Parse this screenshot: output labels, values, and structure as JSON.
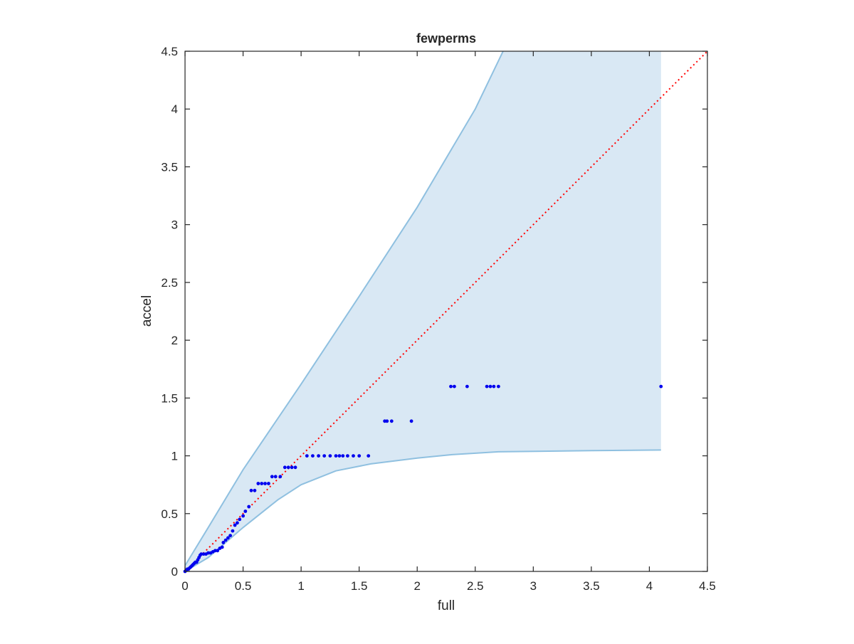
{
  "chart_data": {
    "type": "scatter",
    "title": "fewperms",
    "xlabel": "full",
    "ylabel": "accel",
    "xlim": [
      0,
      4.5
    ],
    "ylim": [
      0,
      4.5
    ],
    "xticks": [
      "0",
      "0.5",
      "1",
      "1.5",
      "2",
      "2.5",
      "3",
      "3.5",
      "4",
      "4.5"
    ],
    "yticks": [
      "0",
      "0.5",
      "1",
      "1.5",
      "2",
      "2.5",
      "3",
      "3.5",
      "4",
      "4.5"
    ],
    "grid": false,
    "colors": {
      "band_fill": "#d9e8f4",
      "band_edge": "#8fc0e0",
      "points": "#0000ee",
      "reference": "#ff0000",
      "axes": "#262626"
    },
    "band": {
      "upper": [
        [
          0,
          0.05
        ],
        [
          0.2,
          0.38
        ],
        [
          0.5,
          0.88
        ],
        [
          1.0,
          1.62
        ],
        [
          1.5,
          2.38
        ],
        [
          2.0,
          3.15
        ],
        [
          2.5,
          4.0
        ],
        [
          2.74,
          4.5
        ],
        [
          4.1,
          4.5
        ]
      ],
      "lower": [
        [
          0,
          0.0
        ],
        [
          0.2,
          0.12
        ],
        [
          0.5,
          0.38
        ],
        [
          0.8,
          0.62
        ],
        [
          1.0,
          0.75
        ],
        [
          1.3,
          0.87
        ],
        [
          1.6,
          0.93
        ],
        [
          2.0,
          0.98
        ],
        [
          2.3,
          1.01
        ],
        [
          2.7,
          1.035
        ],
        [
          3.5,
          1.045
        ],
        [
          4.1,
          1.05
        ]
      ]
    },
    "reference_line": [
      [
        0,
        0
      ],
      [
        4.5,
        4.5
      ]
    ],
    "points": [
      [
        0.0,
        0.0
      ],
      [
        0.01,
        0.01
      ],
      [
        0.02,
        0.02
      ],
      [
        0.03,
        0.02
      ],
      [
        0.04,
        0.03
      ],
      [
        0.05,
        0.04
      ],
      [
        0.06,
        0.05
      ],
      [
        0.07,
        0.06
      ],
      [
        0.08,
        0.07
      ],
      [
        0.09,
        0.08
      ],
      [
        0.1,
        0.08
      ],
      [
        0.11,
        0.1
      ],
      [
        0.12,
        0.12
      ],
      [
        0.13,
        0.14
      ],
      [
        0.14,
        0.15
      ],
      [
        0.16,
        0.15
      ],
      [
        0.18,
        0.15
      ],
      [
        0.2,
        0.16
      ],
      [
        0.22,
        0.16
      ],
      [
        0.24,
        0.17
      ],
      [
        0.26,
        0.18
      ],
      [
        0.28,
        0.18
      ],
      [
        0.3,
        0.2
      ],
      [
        0.32,
        0.21
      ],
      [
        0.33,
        0.25
      ],
      [
        0.35,
        0.27
      ],
      [
        0.37,
        0.29
      ],
      [
        0.39,
        0.31
      ],
      [
        0.41,
        0.35
      ],
      [
        0.43,
        0.4
      ],
      [
        0.45,
        0.42
      ],
      [
        0.47,
        0.45
      ],
      [
        0.5,
        0.48
      ],
      [
        0.52,
        0.52
      ],
      [
        0.55,
        0.56
      ],
      [
        0.57,
        0.7
      ],
      [
        0.6,
        0.7
      ],
      [
        0.63,
        0.76
      ],
      [
        0.66,
        0.76
      ],
      [
        0.69,
        0.76
      ],
      [
        0.72,
        0.76
      ],
      [
        0.75,
        0.82
      ],
      [
        0.78,
        0.82
      ],
      [
        0.82,
        0.82
      ],
      [
        0.86,
        0.9
      ],
      [
        0.89,
        0.9
      ],
      [
        0.92,
        0.9
      ],
      [
        0.95,
        0.9
      ],
      [
        1.05,
        1.0
      ],
      [
        1.1,
        1.0
      ],
      [
        1.15,
        1.0
      ],
      [
        1.2,
        1.0
      ],
      [
        1.25,
        1.0
      ],
      [
        1.3,
        1.0
      ],
      [
        1.33,
        1.0
      ],
      [
        1.36,
        1.0
      ],
      [
        1.4,
        1.0
      ],
      [
        1.45,
        1.0
      ],
      [
        1.5,
        1.0
      ],
      [
        1.58,
        1.0
      ],
      [
        1.72,
        1.3
      ],
      [
        1.74,
        1.3
      ],
      [
        1.78,
        1.3
      ],
      [
        1.95,
        1.3
      ],
      [
        2.29,
        1.6
      ],
      [
        2.32,
        1.6
      ],
      [
        2.43,
        1.6
      ],
      [
        2.6,
        1.6
      ],
      [
        2.63,
        1.6
      ],
      [
        2.66,
        1.6
      ],
      [
        2.7,
        1.6
      ],
      [
        4.1,
        1.6
      ]
    ]
  }
}
